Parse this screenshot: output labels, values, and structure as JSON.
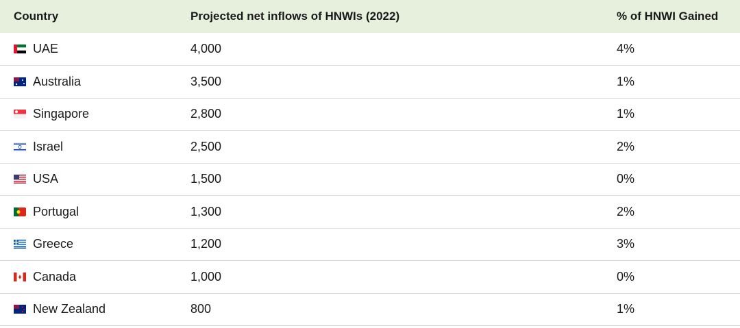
{
  "table": {
    "header": [
      "Country",
      "Projected net inflows of HNWIs (2022)",
      "% of HNWI Gained"
    ],
    "rows": [
      [
        "UAE",
        "4,000",
        "4%"
      ],
      [
        "Australia",
        "3,500",
        "1%"
      ],
      [
        "Singapore",
        "2,800",
        "1%"
      ],
      [
        "Israel",
        "2,500",
        "2%"
      ],
      [
        "USA",
        "1,500",
        "0%"
      ],
      [
        "Portugal",
        "1,300",
        "2%"
      ],
      [
        "Greece",
        "1,200",
        "3%"
      ],
      [
        "Canada",
        "1,000",
        "0%"
      ],
      [
        "New Zealand",
        "800",
        "1%"
      ]
    ]
  }
}
